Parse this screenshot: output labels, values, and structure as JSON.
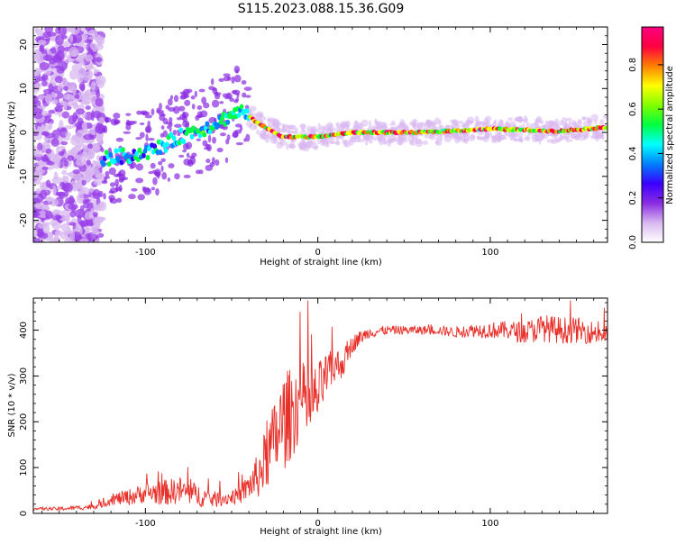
{
  "figure": {
    "title": "S115.2023.088.15.36.G09"
  },
  "chart_data": [
    {
      "type": "heatmap",
      "xlabel": "Height of straight line (km)",
      "ylabel": "Frequency (Hz)",
      "xlim": [
        -165,
        168
      ],
      "ylim": [
        -25,
        24
      ],
      "xticks": [
        -100,
        0,
        100
      ],
      "xtick_labels": [
        "-100",
        "0",
        "100"
      ],
      "yticks": [
        -20,
        -10,
        0,
        10,
        20
      ],
      "ytick_labels": [
        "-20",
        "-10",
        "0",
        "10",
        "20"
      ],
      "colorbar": {
        "label": "Normalized spectral amplitude",
        "ticks": [
          0.0,
          0.2,
          0.4,
          0.6,
          0.8
        ],
        "tick_labels": [
          "0.0",
          "0.2",
          "0.4",
          "0.6",
          "0.8"
        ],
        "range": [
          0,
          0.97
        ],
        "colors": [
          "#ffffff",
          "#d8b8f0",
          "#8a2be2",
          "#3a00ff",
          "#0080ff",
          "#00ffff",
          "#00ff40",
          "#80ff00",
          "#ffff00",
          "#ff8000",
          "#ff0040",
          "#ff0080"
        ]
      },
      "ridge": {
        "x": [
          -125,
          -115,
          -105,
          -95,
          -85,
          -75,
          -65,
          -55,
          -45,
          -38,
          -30,
          -20,
          -10,
          0,
          20,
          60,
          100,
          140,
          168
        ],
        "y": [
          -6,
          -5.5,
          -5,
          -4,
          -2,
          0,
          1,
          3,
          5,
          3,
          1,
          -1,
          -1,
          -1,
          0,
          0,
          0.8,
          0.3,
          1.2
        ]
      },
      "grid": false
    },
    {
      "type": "line",
      "xlabel": "Height of straight line (km)",
      "ylabel": "SNR (10 * v/v)",
      "xlim": [
        -165,
        168
      ],
      "ylim": [
        0,
        470
      ],
      "xticks": [
        -100,
        0,
        100
      ],
      "xtick_labels": [
        "-100",
        "0",
        "100"
      ],
      "yticks": [
        0,
        100,
        200,
        300,
        400
      ],
      "ytick_labels": [
        "0",
        "100",
        "200",
        "300",
        "400"
      ],
      "series": [
        {
          "color": "#e8302a",
          "x": [
            -165,
            -150,
            -140,
            -130,
            -125,
            -120,
            -110,
            -100,
            -90,
            -80,
            -70,
            -60,
            -50,
            -45,
            -40,
            -35,
            -30,
            -25,
            -20,
            -15,
            -10,
            -5,
            0,
            5,
            10,
            15,
            20,
            25,
            30,
            40,
            50,
            60,
            70,
            80,
            90,
            100,
            110,
            120,
            130,
            140,
            150,
            160,
            168
          ],
          "y": [
            10,
            10,
            12,
            15,
            20,
            30,
            35,
            45,
            45,
            50,
            40,
            30,
            35,
            40,
            60,
            80,
            120,
            160,
            200,
            220,
            250,
            230,
            260,
            300,
            320,
            330,
            370,
            385,
            395,
            400,
            400,
            400,
            400,
            395,
            400,
            400,
            400,
            395,
            405,
            400,
            400,
            395,
            390
          ],
          "noise": [
            3,
            4,
            5,
            6,
            8,
            12,
            18,
            22,
            28,
            30,
            25,
            18,
            15,
            20,
            30,
            50,
            70,
            90,
            110,
            100,
            90,
            80,
            70,
            50,
            40,
            30,
            20,
            15,
            12,
            10,
            10,
            10,
            10,
            12,
            15,
            18,
            20,
            25,
            30,
            30,
            28,
            25,
            25
          ]
        }
      ],
      "grid": false
    }
  ]
}
